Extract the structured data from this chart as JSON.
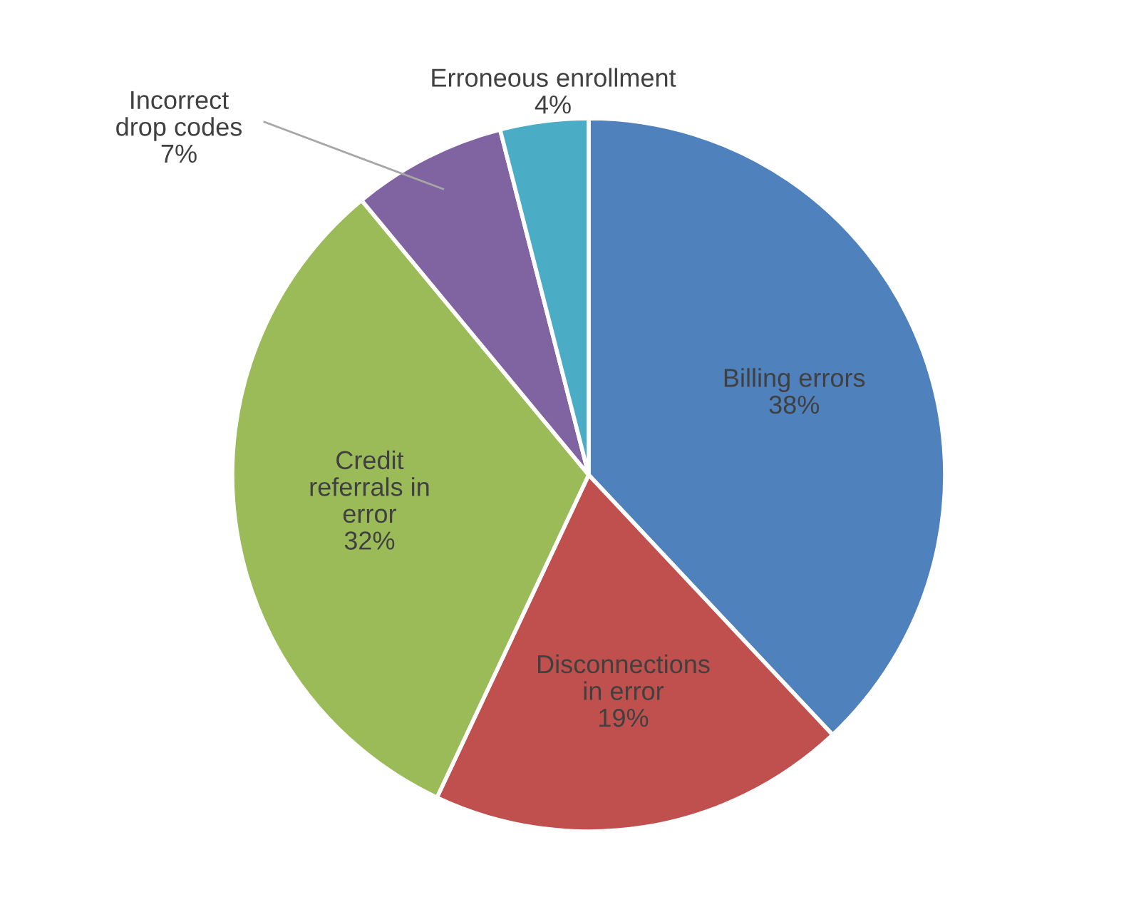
{
  "chart_data": {
    "type": "pie",
    "categories": [
      "Billing errors",
      "Disconnections\nin error",
      "Credit\nreferrals in\nerror",
      "Incorrect\ndrop codes",
      "Erroneous enrollment"
    ],
    "values": [
      38,
      19,
      32,
      7,
      4
    ],
    "colors": [
      "#4f81bd",
      "#c0504d",
      "#9bbb59",
      "#8064a2",
      "#4bacc6"
    ],
    "value_labels": [
      "38%",
      "19%",
      "32%",
      "7%",
      "4%"
    ],
    "legend": false
  }
}
